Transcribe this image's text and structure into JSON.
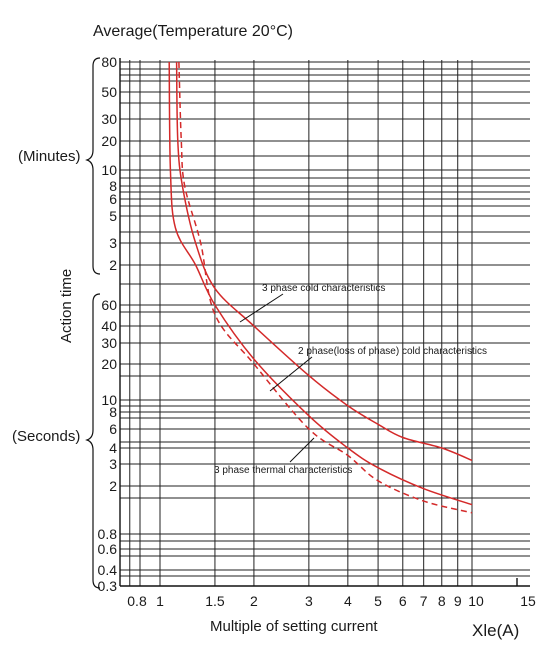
{
  "chart_data": {
    "type": "line",
    "title": "Average(Temperature 20°C)",
    "xlabel": "Multiple of setting current",
    "xlabel_unit": "Xle(A)",
    "ylabel": "Action time",
    "y_group_minutes": "(Minutes)",
    "y_group_seconds": "(Seconds)",
    "x_ticks": [
      "0.8",
      "1",
      "1.5",
      "2",
      "3",
      "4",
      "5",
      "6",
      "7",
      "8",
      "9",
      "10",
      "15"
    ],
    "y_ticks_minutes": [
      "80",
      "50",
      "30",
      "20",
      "10",
      "8",
      "6",
      "5",
      "3",
      "2"
    ],
    "y_ticks_seconds": [
      "60",
      "40",
      "30",
      "20",
      "10",
      "8",
      "6",
      "4",
      "3",
      "2",
      "0.8",
      "0.6",
      "0.4",
      "0.3"
    ],
    "series": [
      {
        "name": "3 phase cold characteristics",
        "style": "solid",
        "points": [
          {
            "x": 1.13,
            "time": "80 min"
          },
          {
            "x": 1.14,
            "time": "20 min"
          },
          {
            "x": 1.18,
            "time": "8 min"
          },
          {
            "x": 1.3,
            "time": "3 min"
          },
          {
            "x": 1.5,
            "time": "80 s"
          },
          {
            "x": 2,
            "time": "40 s"
          },
          {
            "x": 3,
            "time": "16 s"
          },
          {
            "x": 4,
            "time": "9 s"
          },
          {
            "x": 5,
            "time": "6.5 s"
          },
          {
            "x": 6,
            "time": "5 s"
          },
          {
            "x": 8,
            "time": "4 s"
          },
          {
            "x": 10,
            "time": "3.2 s"
          }
        ]
      },
      {
        "name": "2 phase(loss of phase) cold characteristics",
        "style": "solid",
        "points": [
          {
            "x": 1.07,
            "time": "80 min"
          },
          {
            "x": 1.08,
            "time": "10 min"
          },
          {
            "x": 1.12,
            "time": "4 min"
          },
          {
            "x": 1.3,
            "time": "2 min"
          },
          {
            "x": 1.5,
            "time": "60 s"
          },
          {
            "x": 2,
            "time": "22 s"
          },
          {
            "x": 3,
            "time": "7.5 s"
          },
          {
            "x": 4,
            "time": "4 s"
          },
          {
            "x": 5,
            "time": "2.8 s"
          },
          {
            "x": 7,
            "time": "1.9 s"
          },
          {
            "x": 10,
            "time": "1.4 s"
          }
        ]
      },
      {
        "name": "3 phase thermal characteristics",
        "style": "dashed",
        "points": [
          {
            "x": 1.15,
            "time": "80 min"
          },
          {
            "x": 1.17,
            "time": "20 min"
          },
          {
            "x": 1.2,
            "time": "8 min"
          },
          {
            "x": 1.35,
            "time": "3 min"
          },
          {
            "x": 1.5,
            "time": "50 s"
          },
          {
            "x": 2,
            "time": "20 s"
          },
          {
            "x": 3,
            "time": "6 s"
          },
          {
            "x": 4,
            "time": "3.5 s"
          },
          {
            "x": 5,
            "time": "2.2 s"
          },
          {
            "x": 7,
            "time": "1.5 s"
          },
          {
            "x": 10,
            "time": "1.2 s"
          }
        ]
      }
    ],
    "grid": true,
    "legend": "annotations on curves"
  }
}
